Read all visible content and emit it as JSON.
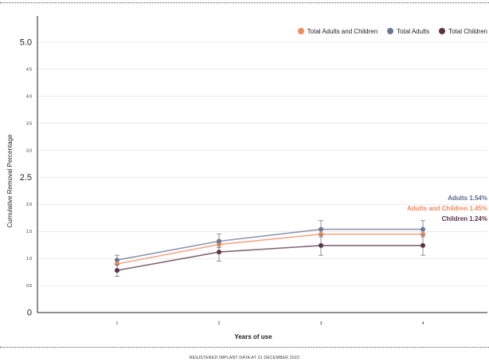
{
  "footer": "REGISTERED IMPLANT DATA AT 31 DECEMBER 2022",
  "chart_data": {
    "type": "line",
    "xlabel": "Years of use",
    "ylabel": "Cumulative Removal Percentage",
    "x": [
      1,
      2,
      3,
      4
    ],
    "x_tick_labels": [
      "1",
      "2",
      "3",
      "4"
    ],
    "ylim": [
      0,
      5.2
    ],
    "y_ticks": [
      {
        "value": 0,
        "label": "0"
      },
      {
        "value": 0.5,
        "label": "0.5"
      },
      {
        "value": 1.0,
        "label": "1.0"
      },
      {
        "value": 1.5,
        "label": "1.5"
      },
      {
        "value": 2.0,
        "label": "2.0"
      },
      {
        "value": 2.5,
        "label": "2.5"
      },
      {
        "value": 3.0,
        "label": "3.0"
      },
      {
        "value": 3.5,
        "label": "3.5"
      },
      {
        "value": 4.0,
        "label": "4.0"
      },
      {
        "value": 4.5,
        "label": "4.5"
      },
      {
        "value": 5.0,
        "label": "5.0"
      }
    ],
    "grid": true,
    "legend_position": "top-right",
    "series": [
      {
        "name": "Total Adults and Children",
        "color": "#f08a62",
        "values": [
          0.9,
          1.26,
          1.45,
          1.45
        ],
        "end_label": "Adults and Children 1.45%"
      },
      {
        "name": "Total Adults",
        "color": "#6b7596",
        "values": [
          0.97,
          1.32,
          1.54,
          1.54
        ],
        "error_low": [
          0.89,
          1.2,
          1.4,
          1.4
        ],
        "error_high": [
          1.06,
          1.45,
          1.7,
          1.7
        ],
        "end_label": "Adults 1.54%"
      },
      {
        "name": "Total Children",
        "color": "#5a3148",
        "values": [
          0.78,
          1.12,
          1.24,
          1.24
        ],
        "error_low": [
          0.67,
          0.95,
          1.06,
          1.06
        ],
        "error_high": [
          0.89,
          1.29,
          1.44,
          1.44
        ],
        "end_label": "Children 1.24%"
      }
    ]
  }
}
